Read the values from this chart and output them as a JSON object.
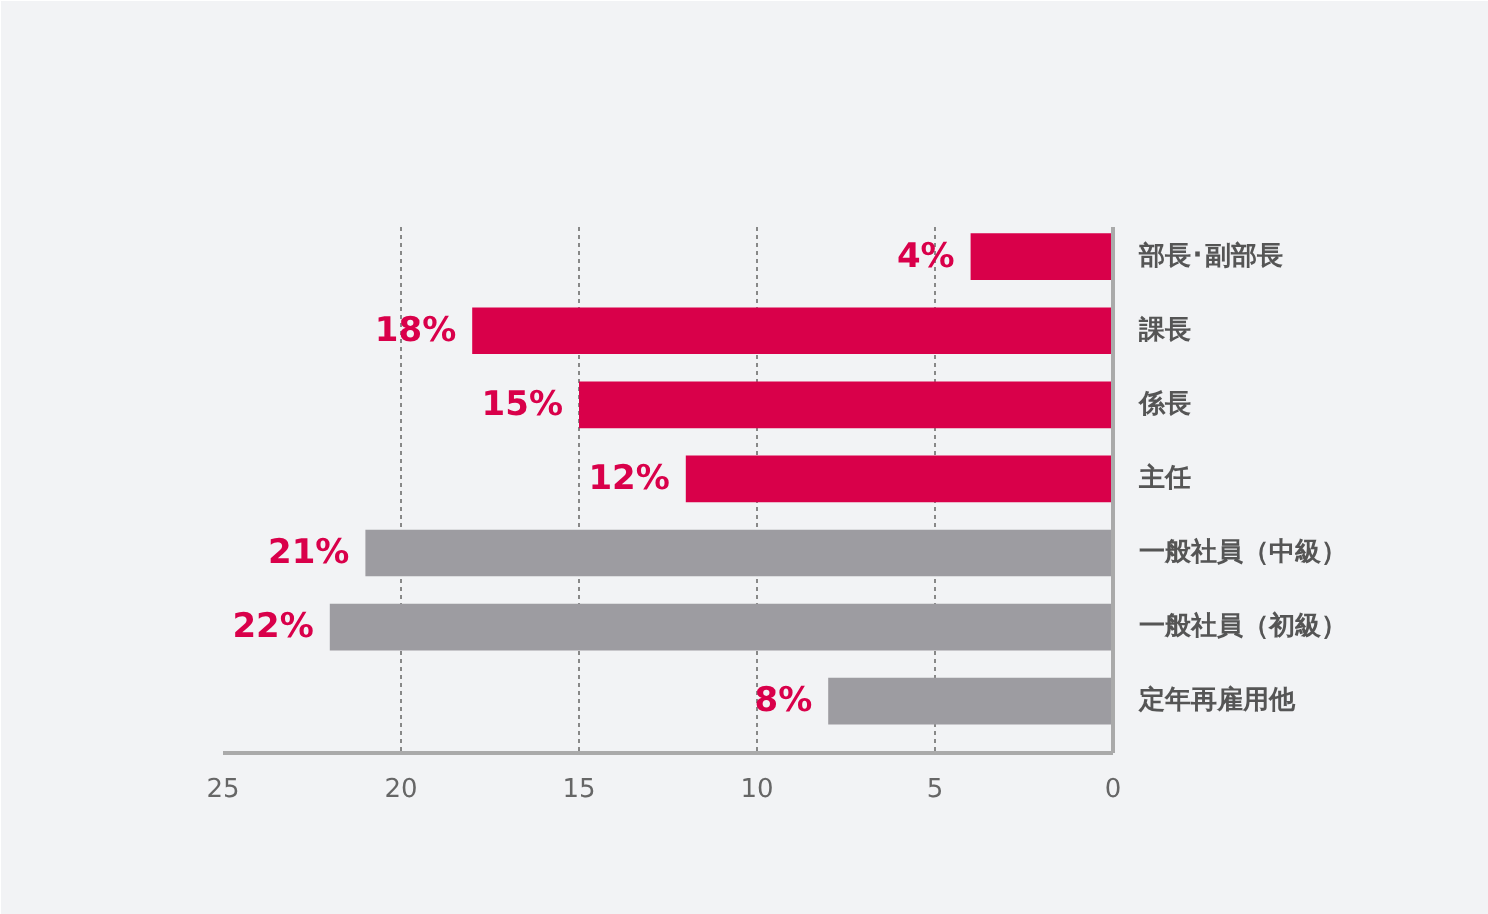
{
  "chart_data": {
    "type": "bar",
    "orientation": "horizontal",
    "categories": [
      "部長･副部長",
      "課長",
      "係長",
      "主任",
      "一般社員（中級）",
      "一般社員（初級）",
      "定年再雇用他"
    ],
    "values": [
      4,
      18,
      15,
      12,
      21,
      22,
      8
    ],
    "colors": [
      "#d9004a",
      "#d9004a",
      "#d9004a",
      "#d9004a",
      "#9d9ca1",
      "#9d9ca1",
      "#9d9ca1"
    ],
    "value_labels": [
      "4%",
      "18%",
      "15%",
      "12%",
      "21%",
      "22%",
      "8%"
    ],
    "xlim": [
      25,
      0
    ],
    "xticks": [
      25,
      20,
      15,
      10,
      5,
      0
    ],
    "grid": "x"
  }
}
